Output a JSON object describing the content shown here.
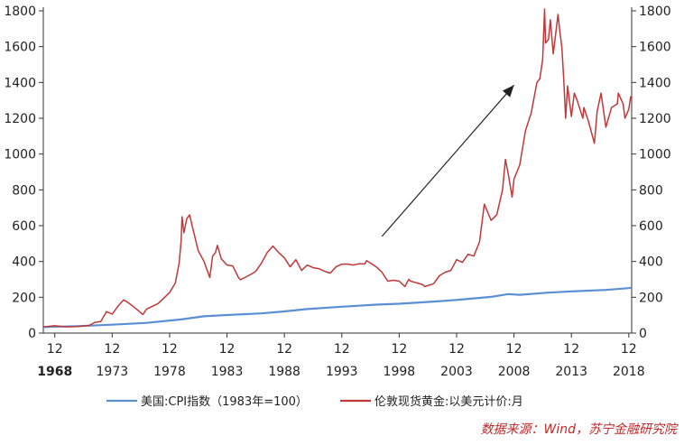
{
  "chart_data": {
    "type": "line",
    "title": "",
    "xlabel": "",
    "ylabel": "",
    "ylim": [
      0,
      1800
    ],
    "y_ticks": [
      "0",
      "200",
      "400",
      "600",
      "800",
      "1000",
      "1200",
      "1400",
      "1600",
      "1800"
    ],
    "x_ticks": [
      {
        "month": "12",
        "year": "1968"
      },
      {
        "month": "12",
        "year": "1973"
      },
      {
        "month": "12",
        "year": "1978"
      },
      {
        "month": "12",
        "year": "1983"
      },
      {
        "month": "12",
        "year": "1988"
      },
      {
        "month": "12",
        "year": "1993"
      },
      {
        "month": "12",
        "year": "1998"
      },
      {
        "month": "12",
        "year": "2003"
      },
      {
        "month": "12",
        "year": "2008"
      },
      {
        "month": "12",
        "year": "2013"
      },
      {
        "month": "12",
        "year": "2018"
      }
    ],
    "xlim": [
      "1967-12",
      "2019-03"
    ],
    "grid": false,
    "legend_position": "bottom",
    "series": [
      {
        "name": "美国:CPI指数（1983年=100）",
        "color": "#5b8fd4",
        "points": [
          [
            "1967-12",
            34
          ],
          [
            "1970-12",
            39
          ],
          [
            "1973-12",
            47
          ],
          [
            "1976-12",
            57
          ],
          [
            "1979-12",
            76
          ],
          [
            "1981-12",
            94
          ],
          [
            "1983-12",
            101
          ],
          [
            "1986-12",
            110
          ],
          [
            "1988-12",
            121
          ],
          [
            "1990-12",
            134
          ],
          [
            "1993-12",
            147
          ],
          [
            "1996-12",
            159
          ],
          [
            "1998-12",
            164
          ],
          [
            "2001-12",
            176
          ],
          [
            "2003-12",
            185
          ],
          [
            "2006-12",
            202
          ],
          [
            "2008-06",
            218
          ],
          [
            "2009-06",
            214
          ],
          [
            "2011-12",
            226
          ],
          [
            "2013-12",
            233
          ],
          [
            "2016-12",
            241
          ],
          [
            "2018-12",
            251
          ],
          [
            "2019-03",
            254
          ]
        ]
      },
      {
        "name": "伦敦现货黄金:以美元计价:月",
        "color": "#c0383a",
        "points": [
          [
            "1967-12",
            35
          ],
          [
            "1968-12",
            41
          ],
          [
            "1969-12",
            35
          ],
          [
            "1970-12",
            37
          ],
          [
            "1971-12",
            43
          ],
          [
            "1972-06",
            60
          ],
          [
            "1972-12",
            64
          ],
          [
            "1973-06",
            120
          ],
          [
            "1973-12",
            106
          ],
          [
            "1974-06",
            150
          ],
          [
            "1974-12",
            186
          ],
          [
            "1975-06",
            165
          ],
          [
            "1975-12",
            140
          ],
          [
            "1976-08",
            104
          ],
          [
            "1976-12",
            134
          ],
          [
            "1977-12",
            165
          ],
          [
            "1978-12",
            226
          ],
          [
            "1979-06",
            280
          ],
          [
            "1979-10",
            390
          ],
          [
            "1979-12",
            512
          ],
          [
            "1980-01",
            650
          ],
          [
            "1980-03",
            560
          ],
          [
            "1980-06",
            640
          ],
          [
            "1980-09",
            660
          ],
          [
            "1980-12",
            590
          ],
          [
            "1981-06",
            460
          ],
          [
            "1981-12",
            400
          ],
          [
            "1982-06",
            310
          ],
          [
            "1982-09",
            430
          ],
          [
            "1982-12",
            450
          ],
          [
            "1983-02",
            490
          ],
          [
            "1983-06",
            415
          ],
          [
            "1983-12",
            380
          ],
          [
            "1984-06",
            375
          ],
          [
            "1984-12",
            310
          ],
          [
            "1985-02",
            298
          ],
          [
            "1985-12",
            325
          ],
          [
            "1986-06",
            345
          ],
          [
            "1986-12",
            390
          ],
          [
            "1987-06",
            450
          ],
          [
            "1987-12",
            486
          ],
          [
            "1988-06",
            450
          ],
          [
            "1988-12",
            420
          ],
          [
            "1989-06",
            370
          ],
          [
            "1989-12",
            410
          ],
          [
            "1990-06",
            350
          ],
          [
            "1990-12",
            380
          ],
          [
            "1991-06",
            365
          ],
          [
            "1991-12",
            360
          ],
          [
            "1992-06",
            345
          ],
          [
            "1992-12",
            335
          ],
          [
            "1993-06",
            370
          ],
          [
            "1993-12",
            385
          ],
          [
            "1994-06",
            385
          ],
          [
            "1994-12",
            380
          ],
          [
            "1995-06",
            387
          ],
          [
            "1995-12",
            386
          ],
          [
            "1996-02",
            405
          ],
          [
            "1996-12",
            370
          ],
          [
            "1997-06",
            340
          ],
          [
            "1997-12",
            290
          ],
          [
            "1998-06",
            295
          ],
          [
            "1998-12",
            290
          ],
          [
            "1999-06",
            260
          ],
          [
            "1999-10",
            300
          ],
          [
            "1999-12",
            290
          ],
          [
            "2000-12",
            272
          ],
          [
            "2001-03",
            260
          ],
          [
            "2001-12",
            276
          ],
          [
            "2002-06",
            320
          ],
          [
            "2002-12",
            340
          ],
          [
            "2003-06",
            350
          ],
          [
            "2003-12",
            410
          ],
          [
            "2004-06",
            395
          ],
          [
            "2004-12",
            440
          ],
          [
            "2005-06",
            430
          ],
          [
            "2005-12",
            510
          ],
          [
            "2006-05",
            720
          ],
          [
            "2006-12",
            630
          ],
          [
            "2007-06",
            660
          ],
          [
            "2007-12",
            800
          ],
          [
            "2008-03",
            970
          ],
          [
            "2008-06",
            890
          ],
          [
            "2008-10",
            760
          ],
          [
            "2008-12",
            860
          ],
          [
            "2009-06",
            940
          ],
          [
            "2009-12",
            1130
          ],
          [
            "2010-06",
            1230
          ],
          [
            "2010-12",
            1400
          ],
          [
            "2011-03",
            1420
          ],
          [
            "2011-06",
            1530
          ],
          [
            "2011-08",
            1810
          ],
          [
            "2011-09",
            1620
          ],
          [
            "2011-12",
            1640
          ],
          [
            "2012-02",
            1750
          ],
          [
            "2012-05",
            1560
          ],
          [
            "2012-10",
            1780
          ],
          [
            "2012-12",
            1680
          ],
          [
            "2013-02",
            1600
          ],
          [
            "2013-04",
            1420
          ],
          [
            "2013-06",
            1200
          ],
          [
            "2013-08",
            1380
          ],
          [
            "2013-12",
            1210
          ],
          [
            "2014-03",
            1340
          ],
          [
            "2014-06",
            1300
          ],
          [
            "2014-12",
            1200
          ],
          [
            "2015-01",
            1260
          ],
          [
            "2015-06",
            1180
          ],
          [
            "2015-12",
            1060
          ],
          [
            "2016-03",
            1240
          ],
          [
            "2016-07",
            1340
          ],
          [
            "2016-12",
            1150
          ],
          [
            "2017-06",
            1260
          ],
          [
            "2017-12",
            1280
          ],
          [
            "2018-01",
            1340
          ],
          [
            "2018-06",
            1280
          ],
          [
            "2018-08",
            1200
          ],
          [
            "2018-12",
            1250
          ],
          [
            "2019-02",
            1320
          ],
          [
            "2019-03",
            1300
          ]
        ]
      }
    ],
    "annotations": [
      {
        "type": "arrow",
        "from": [
          "1997-06",
          540
        ],
        "to": [
          "2008-12",
          1385
        ],
        "color": "#222222"
      }
    ]
  },
  "source_note": "数据来源：Wind，苏宁金融研究院"
}
